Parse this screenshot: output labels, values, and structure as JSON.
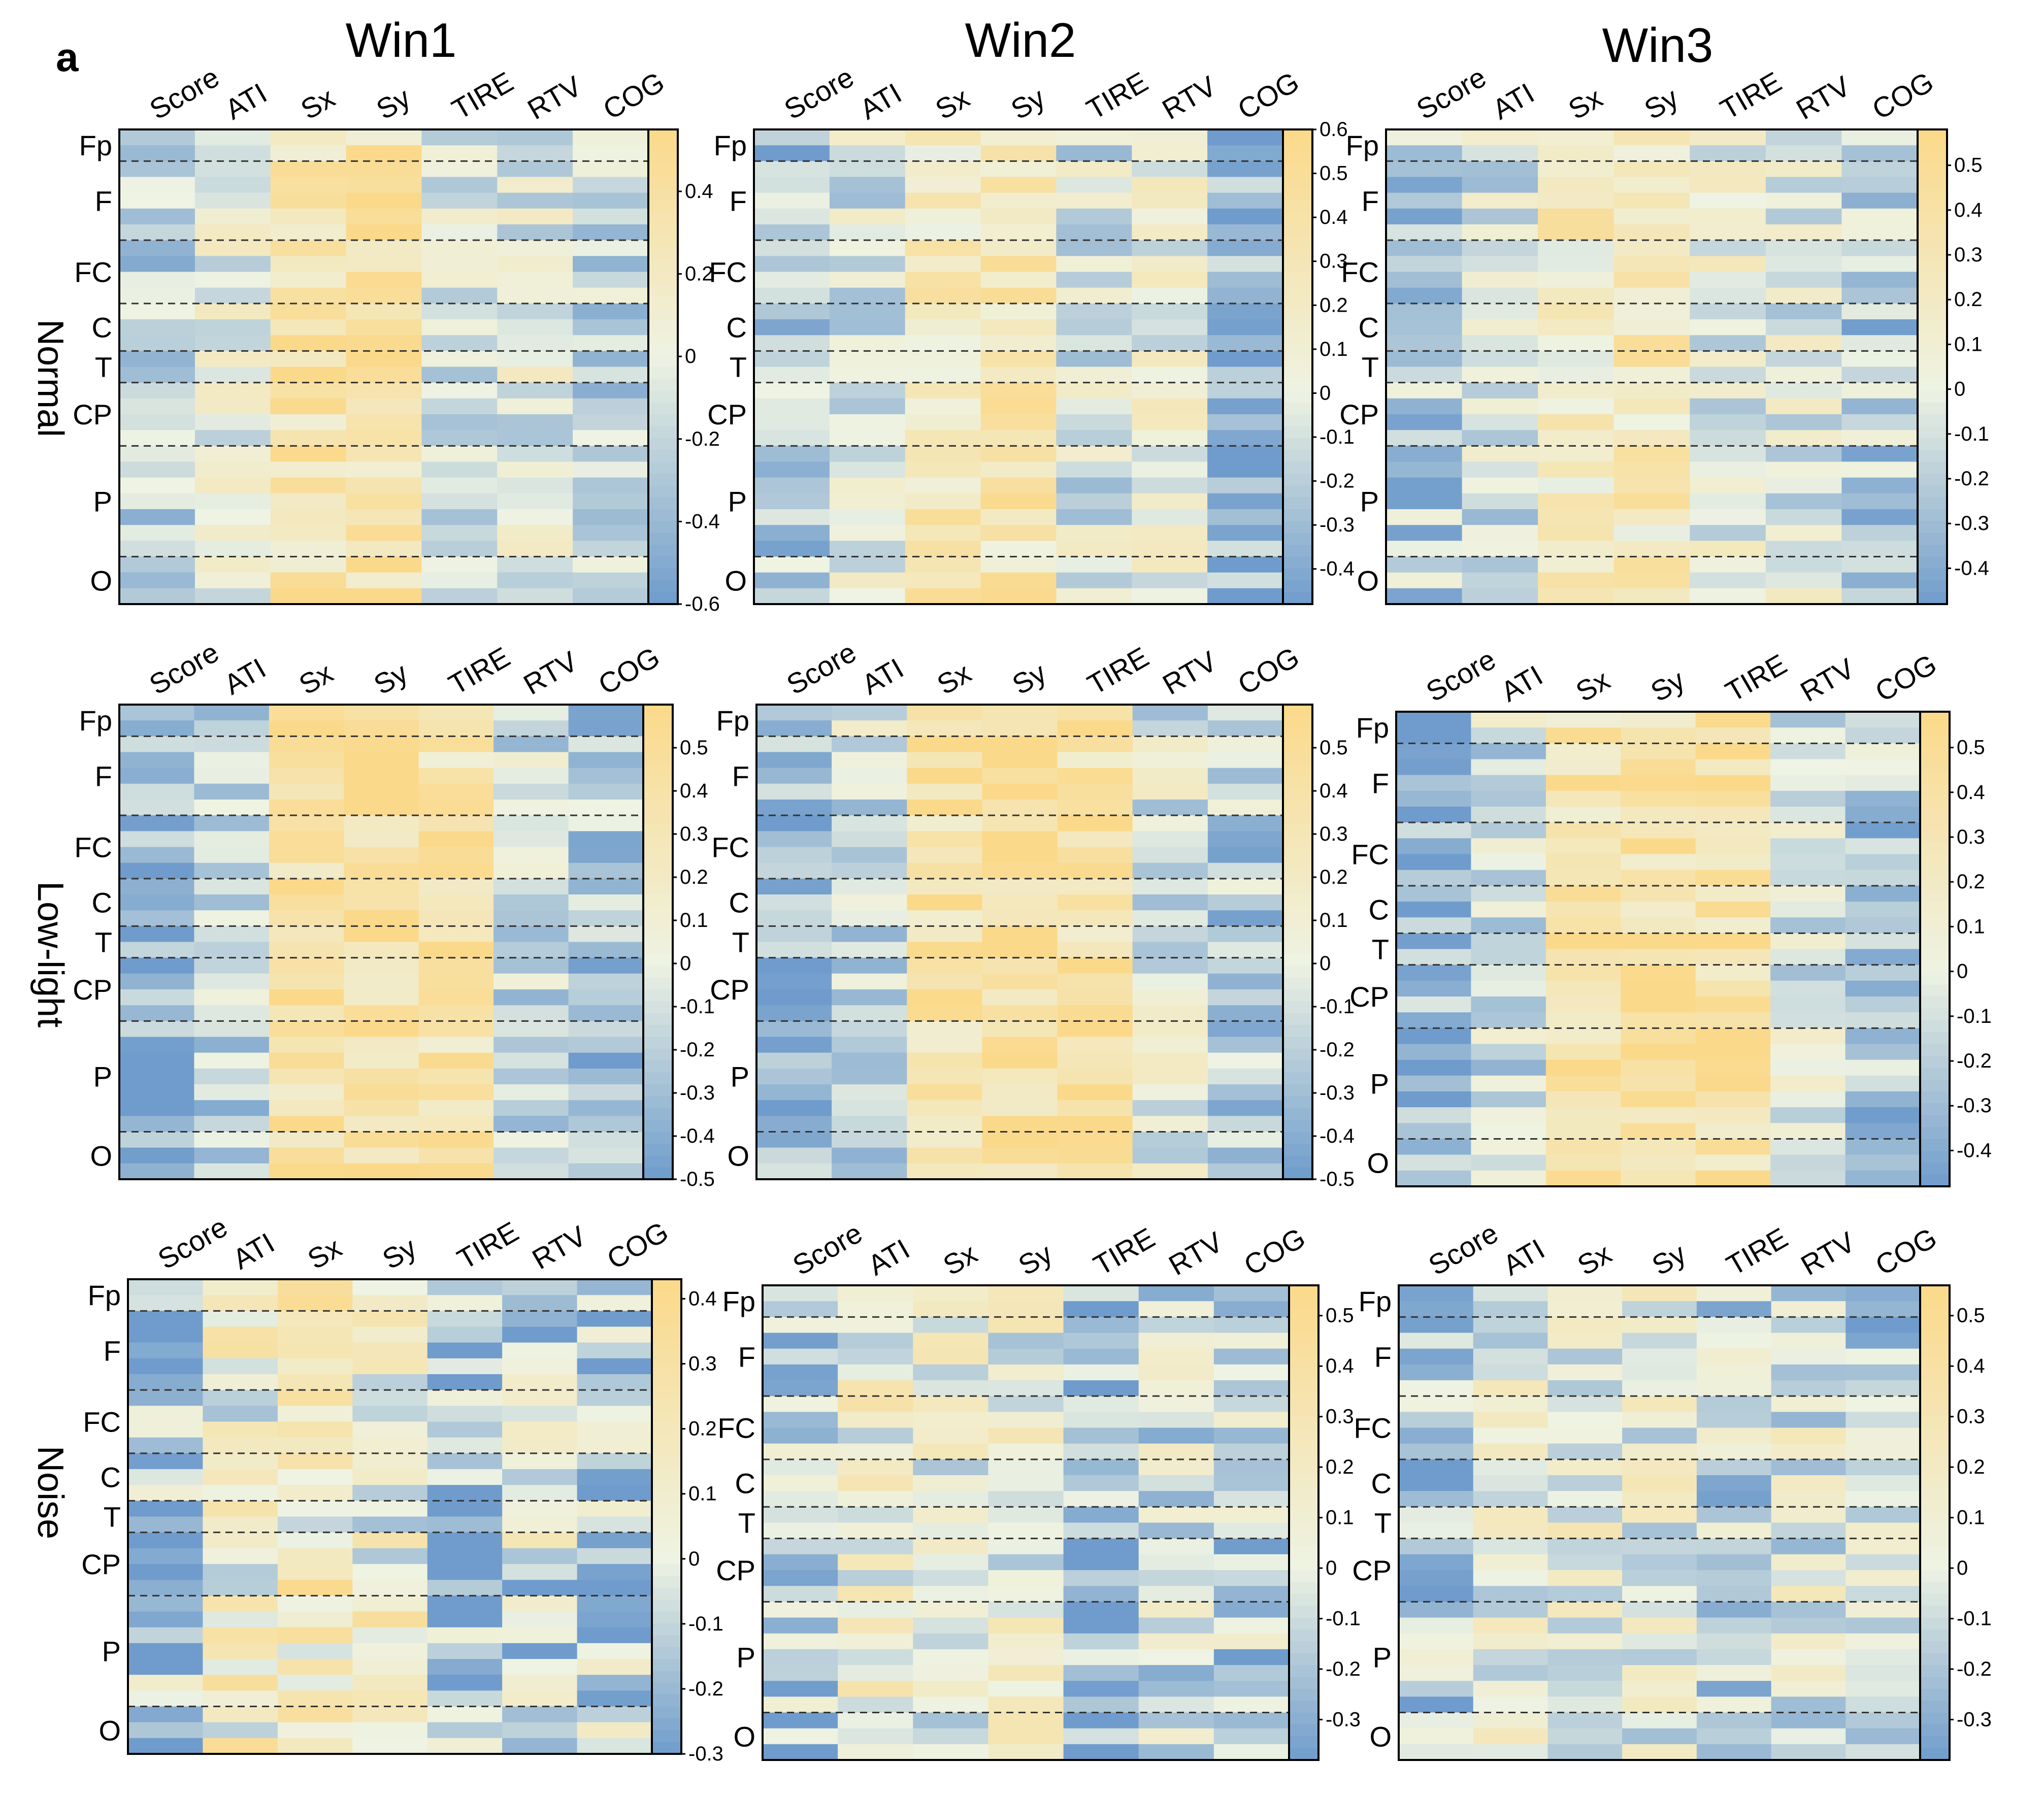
{
  "figure": {
    "panel_label": "a"
  },
  "columns": [
    "Win1",
    "Win2",
    "Win3"
  ],
  "rows": [
    "Normal",
    "Low-light",
    "Noise"
  ],
  "features": [
    "Score",
    "ATI",
    "Sx",
    "Sy",
    "TIRE",
    "RTV",
    "COG"
  ],
  "regions": [
    "Fp",
    "F",
    "FC",
    "C",
    "T",
    "CP",
    "P",
    "O"
  ],
  "colors": {
    "low": "#6f9ccc",
    "mid": "#eef3e3",
    "high": "#fbd98a"
  },
  "chart_data": [
    {
      "type": "heatmap",
      "condition": "Normal",
      "window": "Win1",
      "columns": [
        "Score",
        "ATI",
        "Sx",
        "Sy",
        "TIRE",
        "RTV",
        "COG"
      ],
      "regions": [
        "Fp",
        "F",
        "FC",
        "C",
        "T",
        "CP",
        "P",
        "O"
      ],
      "region_boundaries": [
        2,
        7,
        11,
        14,
        16,
        20,
        27
      ],
      "column_means": [
        -0.25,
        -0.05,
        0.35,
        0.35,
        -0.1,
        -0.05,
        -0.2
      ],
      "colorbar": {
        "ticks": [
          0.4,
          0.2,
          0,
          -0.2,
          -0.4,
          -0.6
        ],
        "tick_labels": [
          "0.4",
          "0.2",
          "0",
          "-0.2",
          "-0.4",
          "-0.6"
        ],
        "range": [
          -0.6,
          0.55
        ]
      }
    },
    {
      "type": "heatmap",
      "condition": "Normal",
      "window": "Win2",
      "columns": [
        "Score",
        "ATI",
        "Sx",
        "Sy",
        "TIRE",
        "RTV",
        "COG"
      ],
      "regions": [
        "Fp",
        "F",
        "FC",
        "C",
        "T",
        "CP",
        "P",
        "O"
      ],
      "region_boundaries": [
        2,
        7,
        11,
        14,
        16,
        20,
        27
      ],
      "column_means": [
        -0.25,
        -0.05,
        0.25,
        0.3,
        -0.05,
        0.02,
        -0.35
      ],
      "colorbar": {
        "ticks": [
          0.6,
          0.5,
          0.4,
          0.3,
          0.2,
          0.1,
          0,
          -0.1,
          -0.2,
          -0.3,
          -0.4
        ],
        "tick_labels": [
          "0.6",
          "0.5",
          "0.4",
          "0.3",
          "0.2",
          "0.1",
          "0",
          "-0.1",
          "-0.2",
          "-0.3",
          "-0.4"
        ],
        "range": [
          -0.48,
          0.6
        ]
      }
    },
    {
      "type": "heatmap",
      "condition": "Normal",
      "window": "Win3",
      "columns": [
        "Score",
        "ATI",
        "Sx",
        "Sy",
        "TIRE",
        "RTV",
        "COG"
      ],
      "regions": [
        "Fp",
        "F",
        "FC",
        "C",
        "T",
        "CP",
        "P",
        "O"
      ],
      "region_boundaries": [
        2,
        7,
        11,
        14,
        16,
        20,
        27
      ],
      "column_means": [
        -0.2,
        -0.05,
        0.2,
        0.25,
        0.0,
        0.0,
        -0.2
      ],
      "colorbar": {
        "ticks": [
          0.5,
          0.4,
          0.3,
          0.2,
          0.1,
          0,
          -0.1,
          -0.2,
          -0.3,
          -0.4
        ],
        "tick_labels": [
          "0.5",
          "0.4",
          "0.3",
          "0.2",
          "0.1",
          "0",
          "-0.1",
          "-0.2",
          "-0.3",
          "-0.4"
        ],
        "range": [
          -0.48,
          0.58
        ]
      }
    },
    {
      "type": "heatmap",
      "condition": "Low-light",
      "window": "Win1",
      "columns": [
        "Score",
        "ATI",
        "Sx",
        "Sy",
        "TIRE",
        "RTV",
        "COG"
      ],
      "regions": [
        "Fp",
        "F",
        "FC",
        "C",
        "T",
        "CP",
        "P",
        "O"
      ],
      "region_boundaries": [
        2,
        7,
        11,
        14,
        16,
        20,
        27
      ],
      "column_means": [
        -0.35,
        -0.15,
        0.4,
        0.45,
        0.35,
        -0.1,
        -0.25
      ],
      "colorbar": {
        "ticks": [
          0.5,
          0.4,
          0.3,
          0.2,
          0.1,
          0,
          -0.1,
          -0.2,
          -0.3,
          -0.4,
          -0.5
        ],
        "tick_labels": [
          "0.5",
          "0.4",
          "0.3",
          "0.2",
          "0.1",
          "0",
          "-0.1",
          "-0.2",
          "-0.3",
          "-0.4",
          "-0.5"
        ],
        "range": [
          -0.5,
          0.6
        ]
      }
    },
    {
      "type": "heatmap",
      "condition": "Low-light",
      "window": "Win2",
      "columns": [
        "Score",
        "ATI",
        "Sx",
        "Sy",
        "TIRE",
        "RTV",
        "COG"
      ],
      "regions": [
        "Fp",
        "F",
        "FC",
        "C",
        "T",
        "CP",
        "P",
        "O"
      ],
      "region_boundaries": [
        2,
        7,
        11,
        14,
        16,
        20,
        27
      ],
      "column_means": [
        -0.35,
        -0.1,
        0.4,
        0.45,
        0.4,
        -0.05,
        -0.2
      ],
      "colorbar": {
        "ticks": [
          0.5,
          0.4,
          0.3,
          0.2,
          0.1,
          0,
          -0.1,
          -0.2,
          -0.3,
          -0.4,
          -0.5
        ],
        "tick_labels": [
          "0.5",
          "0.4",
          "0.3",
          "0.2",
          "0.1",
          "0",
          "-0.1",
          "-0.2",
          "-0.3",
          "-0.4",
          "-0.5"
        ],
        "range": [
          -0.5,
          0.6
        ]
      }
    },
    {
      "type": "heatmap",
      "condition": "Low-light",
      "window": "Win3",
      "columns": [
        "Score",
        "ATI",
        "Sx",
        "Sy",
        "TIRE",
        "RTV",
        "COG"
      ],
      "regions": [
        "Fp",
        "F",
        "FC",
        "C",
        "T",
        "CP",
        "P",
        "O"
      ],
      "region_boundaries": [
        2,
        7,
        11,
        14,
        16,
        20,
        27
      ],
      "column_means": [
        -0.3,
        -0.1,
        0.35,
        0.4,
        0.4,
        -0.05,
        -0.2
      ],
      "colorbar": {
        "ticks": [
          0.5,
          0.4,
          0.3,
          0.2,
          0.1,
          0,
          -0.1,
          -0.2,
          -0.3,
          -0.4
        ],
        "tick_labels": [
          "0.5",
          "0.4",
          "0.3",
          "0.2",
          "0.1",
          "0",
          "-0.1",
          "-0.2",
          "-0.3",
          "-0.4"
        ],
        "range": [
          -0.48,
          0.58
        ]
      }
    },
    {
      "type": "heatmap",
      "condition": "Noise",
      "window": "Win1",
      "columns": [
        "Score",
        "ATI",
        "Sx",
        "Sy",
        "TIRE",
        "RTV",
        "COG"
      ],
      "regions": [
        "Fp",
        "F",
        "FC",
        "C",
        "T",
        "CP",
        "P",
        "O"
      ],
      "region_boundaries": [
        2,
        7,
        11,
        14,
        16,
        20,
        27
      ],
      "column_means": [
        -0.15,
        0.1,
        0.15,
        0.1,
        -0.2,
        -0.05,
        -0.12
      ],
      "colorbar": {
        "ticks": [
          0.4,
          0.3,
          0.2,
          0.1,
          0,
          -0.1,
          -0.2,
          -0.3
        ],
        "tick_labels": [
          "0.4",
          "0.3",
          "0.2",
          "0.1",
          "0",
          "-0.1",
          "-0.2",
          "-0.3"
        ],
        "range": [
          -0.3,
          0.43
        ]
      }
    },
    {
      "type": "heatmap",
      "condition": "Noise",
      "window": "Win2",
      "columns": [
        "Score",
        "ATI",
        "Sx",
        "Sy",
        "TIRE",
        "RTV",
        "COG"
      ],
      "regions": [
        "Fp",
        "F",
        "FC",
        "C",
        "T",
        "CP",
        "P",
        "O"
      ],
      "region_boundaries": [
        2,
        7,
        11,
        14,
        16,
        20,
        27
      ],
      "column_means": [
        -0.15,
        0.1,
        0.05,
        0.03,
        -0.25,
        -0.08,
        -0.12
      ],
      "colorbar": {
        "ticks": [
          0.5,
          0.4,
          0.3,
          0.2,
          0.1,
          0,
          -0.1,
          -0.2,
          -0.3
        ],
        "tick_labels": [
          "0.5",
          "0.4",
          "0.3",
          "0.2",
          "0.1",
          "0",
          "-0.1",
          "-0.2",
          "-0.3"
        ],
        "range": [
          -0.38,
          0.56
        ]
      }
    },
    {
      "type": "heatmap",
      "condition": "Noise",
      "window": "Win3",
      "columns": [
        "Score",
        "ATI",
        "Sx",
        "Sy",
        "TIRE",
        "RTV",
        "COG"
      ],
      "regions": [
        "Fp",
        "F",
        "FC",
        "C",
        "T",
        "CP",
        "P",
        "O"
      ],
      "region_boundaries": [
        2,
        7,
        11,
        14,
        16,
        20,
        27
      ],
      "column_means": [
        -0.15,
        0.05,
        0.03,
        0.02,
        -0.12,
        0.0,
        -0.12
      ],
      "colorbar": {
        "ticks": [
          0.5,
          0.4,
          0.3,
          0.2,
          0.1,
          0,
          -0.1,
          -0.2,
          -0.3
        ],
        "tick_labels": [
          "0.5",
          "0.4",
          "0.3",
          "0.2",
          "0.1",
          "0",
          "-0.1",
          "-0.2",
          "-0.3"
        ],
        "range": [
          -0.38,
          0.56
        ]
      }
    }
  ]
}
